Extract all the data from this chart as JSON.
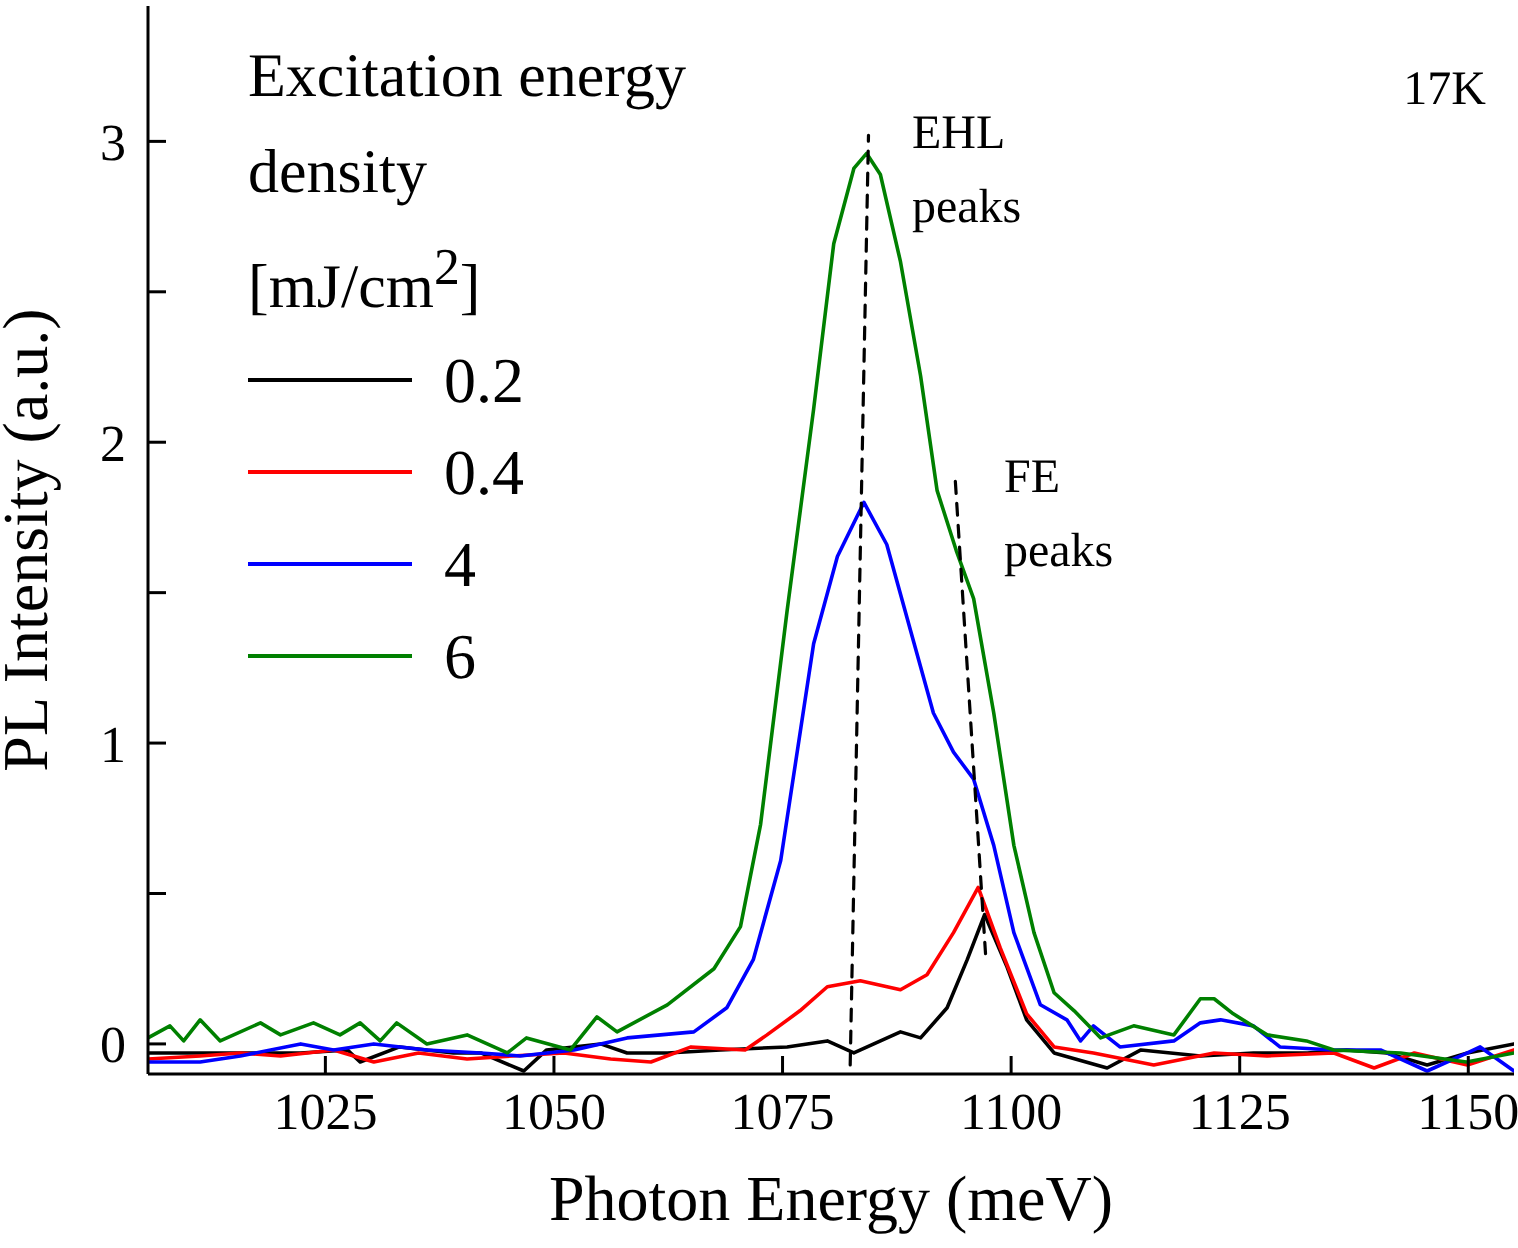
{
  "chart_data": {
    "type": "line",
    "xlabel": "Photon Energy (meV)",
    "ylabel": "PL Intensity (a.u.)",
    "legend_title": "Excitation energy density [mJ/cm$^{2}$]",
    "xlim": [
      1005.6,
      1155
    ],
    "xticks": [
      1025,
      1050,
      1075,
      1100,
      1125,
      1150
    ],
    "ylim": [
      -0.1,
      3.45
    ],
    "yticks": [
      0,
      {
        "value": 0.5,
        "label": null
      },
      1,
      {
        "value": 1.5,
        "label": null
      },
      2,
      {
        "value": 2.5,
        "label": null
      },
      3
    ],
    "grid": false,
    "legend": "top left",
    "marker": "none",
    "line_style": "solid",
    "annotations": [
      "17K",
      "EHL peaks",
      "FE peaks"
    ],
    "series": [
      {
        "name": "0.2",
        "color": "#000000",
        "x": [
          1005.6,
          1011.3,
          1017.2,
          1022.3,
          1027.4,
          1028.8,
          1033.1,
          1039.0,
          1042.0,
          1046.7,
          1049.2,
          1055.1,
          1058.0,
          1062.4,
          1068.2,
          1075.5,
          1079.9,
          1082.8,
          1087.9,
          1090.1,
          1093.0,
          1095.2,
          1097.1,
          1099.5,
          1101.7,
          1104.7,
          1110.5,
          1114.2,
          1120.7,
          1126.5,
          1132.4,
          1136.7,
          1141.1,
          1145.5,
          1149.9,
          1155
        ],
        "values": [
          -0.03,
          -0.03,
          -0.03,
          -0.03,
          -0.02,
          -0.06,
          -0.01,
          -0.03,
          -0.03,
          -0.09,
          -0.02,
          0,
          -0.03,
          -0.03,
          -0.02,
          -0.01,
          0.01,
          -0.03,
          0.04,
          0.02,
          0.12,
          0.28,
          0.43,
          0.26,
          0.08,
          -0.03,
          -0.08,
          -0.02,
          -0.04,
          -0.03,
          -0.03,
          -0.02,
          -0.03,
          -0.07,
          -0.03,
          0
        ]
      },
      {
        "name": "0.4",
        "color": "#ff0000",
        "x": [
          1005.6,
          1011.3,
          1015.7,
          1020.1,
          1025.9,
          1030.3,
          1035.2,
          1040.5,
          1045.4,
          1051.1,
          1056.2,
          1060.6,
          1065.0,
          1070.9,
          1073.3,
          1076.9,
          1079.9,
          1083.5,
          1087.9,
          1090.8,
          1093.7,
          1096.4,
          1098.8,
          1101.7,
          1104.7,
          1109.0,
          1115.6,
          1122.2,
          1128.0,
          1135.3,
          1139.7,
          1144.1,
          1149.9,
          1155
        ],
        "values": [
          -0.05,
          -0.04,
          -0.03,
          -0.04,
          -0.02,
          -0.06,
          -0.03,
          -0.05,
          -0.04,
          -0.03,
          -0.05,
          -0.06,
          -0.01,
          -0.02,
          0.03,
          0.11,
          0.19,
          0.21,
          0.18,
          0.23,
          0.37,
          0.52,
          0.32,
          0.1,
          -0.01,
          -0.03,
          -0.07,
          -0.03,
          -0.04,
          -0.03,
          -0.08,
          -0.03,
          -0.07,
          -0.02
        ]
      },
      {
        "name": "4",
        "color": "#0000ff",
        "x": [
          1005.6,
          1011.3,
          1015.7,
          1022.3,
          1025.9,
          1030.3,
          1036.1,
          1042.0,
          1046.3,
          1052.2,
          1058.0,
          1065.3,
          1068.9,
          1071.8,
          1074.8,
          1078.4,
          1081.0,
          1083.9,
          1086.4,
          1089.4,
          1091.5,
          1093.7,
          1095.9,
          1098.1,
          1100.3,
          1103.2,
          1106.1,
          1107.6,
          1109.0,
          1111.9,
          1117.8,
          1120.7,
          1122.9,
          1126.5,
          1129.4,
          1135.3,
          1140.4,
          1145.5,
          1149.9,
          1151.3,
          1155
        ],
        "values": [
          -0.06,
          -0.06,
          -0.04,
          0,
          -0.02,
          0,
          -0.02,
          -0.03,
          -0.04,
          -0.02,
          0.02,
          0.04,
          0.12,
          0.28,
          0.61,
          1.33,
          1.62,
          1.8,
          1.66,
          1.33,
          1.1,
          0.97,
          0.88,
          0.66,
          0.37,
          0.13,
          0.08,
          0.01,
          0.06,
          -0.01,
          0.01,
          0.07,
          0.08,
          0.06,
          -0.01,
          -0.02,
          -0.02,
          -0.09,
          -0.03,
          -0.01,
          -0.09
        ]
      },
      {
        "name": "6",
        "color": "#008000",
        "x": [
          1005.6,
          1008.0,
          1009.5,
          1011.3,
          1013.5,
          1017.9,
          1020.1,
          1023.7,
          1026.6,
          1028.8,
          1031.0,
          1032.8,
          1036.1,
          1040.5,
          1044.9,
          1047.0,
          1051.8,
          1054.7,
          1056.9,
          1062.4,
          1067.5,
          1070.4,
          1072.6,
          1075.5,
          1078.4,
          1080.6,
          1082.8,
          1084.2,
          1085.7,
          1087.9,
          1090.1,
          1091.9,
          1094.0,
          1095.9,
          1098.1,
          1100.3,
          1102.5,
          1104.7,
          1106.9,
          1109.8,
          1113.4,
          1117.8,
          1120.7,
          1122.2,
          1124.3,
          1128.0,
          1132.3,
          1135.3,
          1142.6,
          1149.8,
          1155
        ],
        "values": [
          0.02,
          0.06,
          0.01,
          0.08,
          0.01,
          0.07,
          0.03,
          0.07,
          0.03,
          0.07,
          0.01,
          0.07,
          0,
          0.03,
          -0.03,
          0.02,
          -0.02,
          0.09,
          0.04,
          0.13,
          0.25,
          0.39,
          0.73,
          1.44,
          2.11,
          2.66,
          2.91,
          2.96,
          2.89,
          2.6,
          2.22,
          1.84,
          1.64,
          1.48,
          1.1,
          0.66,
          0.37,
          0.17,
          0.11,
          0.02,
          0.06,
          0.03,
          0.15,
          0.15,
          0.1,
          0.03,
          0.01,
          -0.02,
          -0.03,
          -0.06,
          -0.03
        ]
      },
      {
        "type": "line",
        "color": "#000000",
        "line_style": "dashed",
        "x": [
          1082.4,
          1084.4
        ],
        "values": [
          -0.07,
          3.02
        ]
      },
      {
        "type": "line",
        "color": "#000000",
        "line_style": "dashed",
        "x": [
          1093.9,
          1097.2
        ],
        "values": [
          1.87,
          0.3
        ]
      }
    ]
  }
}
